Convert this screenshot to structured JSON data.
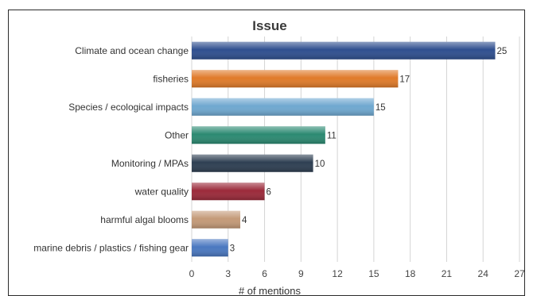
{
  "chart_data": {
    "type": "bar",
    "orientation": "horizontal",
    "title": "Issue",
    "xlabel": "# of mentions",
    "ylabel": "",
    "xlim": [
      0,
      27
    ],
    "xticks": [
      0,
      3,
      6,
      9,
      12,
      15,
      18,
      21,
      24,
      27
    ],
    "grid": true,
    "categories": [
      "Climate and ocean change",
      "fisheries",
      "Species / ecological impacts",
      "Other",
      "Monitoring / MPAs",
      "water quality",
      "harmful algal blooms",
      "marine debris / plastics / fishing gear"
    ],
    "values": [
      25,
      17,
      15,
      11,
      10,
      6,
      4,
      3
    ],
    "colors": [
      "#2f4f8f",
      "#e07b2a",
      "#6fa8d0",
      "#2c8a72",
      "#2e3f52",
      "#9b2a3a",
      "#c49a78",
      "#4a78c0"
    ]
  }
}
